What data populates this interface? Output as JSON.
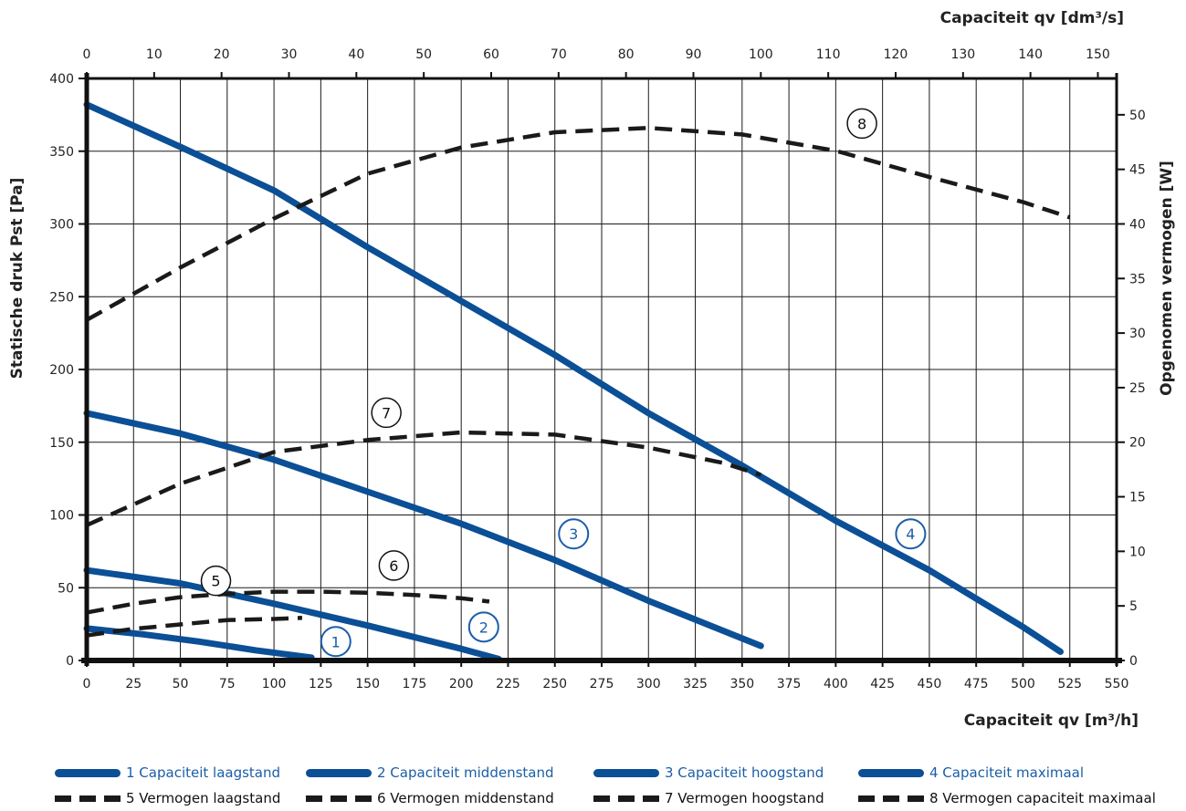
{
  "chart_data": {
    "type": "line",
    "axes": {
      "x_bottom": {
        "label": "Capaciteit qv [m³/h]",
        "range": [
          0,
          550
        ],
        "ticks": [
          0,
          25,
          50,
          75,
          100,
          125,
          150,
          175,
          200,
          225,
          250,
          275,
          300,
          325,
          350,
          375,
          400,
          425,
          450,
          475,
          500,
          525,
          550
        ]
      },
      "x_top": {
        "label": "Capaciteit qv [dm³/s]",
        "range": [
          0,
          152.78
        ],
        "ticks": [
          0,
          10,
          20,
          30,
          40,
          50,
          60,
          70,
          80,
          90,
          100,
          110,
          120,
          130,
          140,
          150
        ]
      },
      "y_left": {
        "label": "Statische druk Pst [Pa]",
        "range": [
          0,
          400
        ],
        "ticks": [
          0,
          50,
          100,
          150,
          200,
          250,
          300,
          350,
          400
        ]
      },
      "y_right": {
        "label": "Opgenomen vermogen [W]",
        "range": [
          0,
          53.33
        ],
        "ticks": [
          0,
          5,
          10,
          15,
          20,
          25,
          30,
          35,
          40,
          45,
          50
        ]
      }
    },
    "grid": true,
    "colors": {
      "capacity": "#0b4f96",
      "power": "#1a1a1a",
      "marker_blue": "#1b5ea8"
    },
    "series": [
      {
        "name": "1 Capaciteit laagstand",
        "num": "1",
        "kind": "capacity",
        "axis": "left",
        "x": [
          0,
          30,
          60,
          90,
          120
        ],
        "y": [
          22,
          18,
          13,
          7,
          2
        ],
        "marker": {
          "x": 133,
          "y": 13
        }
      },
      {
        "name": "2 Capaciteit middenstand",
        "num": "2",
        "kind": "capacity",
        "axis": "left",
        "x": [
          0,
          50,
          100,
          150,
          200,
          220
        ],
        "y": [
          62,
          53,
          39,
          24,
          8,
          1
        ],
        "marker": {
          "x": 212,
          "y": 23
        }
      },
      {
        "name": "3 Capaciteit hoogstand",
        "num": "3",
        "kind": "capacity",
        "axis": "left",
        "x": [
          0,
          50,
          100,
          150,
          200,
          250,
          300,
          360
        ],
        "y": [
          170,
          156,
          138,
          116,
          94,
          69,
          41,
          10
        ],
        "marker": {
          "x": 260,
          "y": 87
        }
      },
      {
        "name": "4 Capaciteit maximaal",
        "num": "4",
        "kind": "capacity",
        "axis": "left",
        "x": [
          0,
          50,
          100,
          150,
          200,
          250,
          300,
          350,
          400,
          450,
          500,
          520
        ],
        "y": [
          382,
          353,
          323,
          284,
          247,
          210,
          170,
          134,
          96,
          62,
          23,
          6
        ],
        "marker": {
          "x": 440,
          "y": 87
        }
      },
      {
        "name": "5 Vermogen laagstand",
        "num": "5",
        "kind": "power",
        "axis": "right",
        "x": [
          0,
          25,
          50,
          75,
          100,
          115
        ],
        "y": [
          2.3,
          2.9,
          3.3,
          3.7,
          3.8,
          3.9
        ],
        "marker": {
          "x": 69,
          "y": 7.3
        }
      },
      {
        "name": "6 Vermogen middenstand",
        "num": "6",
        "kind": "power",
        "axis": "right",
        "x": [
          0,
          25,
          50,
          75,
          100,
          125,
          150,
          175,
          200,
          215
        ],
        "y": [
          4.4,
          5.2,
          5.8,
          6.1,
          6.3,
          6.3,
          6.2,
          6.0,
          5.7,
          5.4
        ],
        "marker": {
          "x": 164,
          "y": 8.7
        }
      },
      {
        "name": "7 Vermogen hoogstand",
        "num": "7",
        "kind": "power",
        "axis": "right",
        "x": [
          0,
          50,
          100,
          150,
          200,
          250,
          300,
          340,
          360
        ],
        "y": [
          12.4,
          16.2,
          19.1,
          20.2,
          20.9,
          20.7,
          19.5,
          18.1,
          17.0
        ],
        "marker": {
          "x": 160,
          "y": 22.7
        }
      },
      {
        "name": "8 Vermogen capaciteit maximaal",
        "num": "8",
        "kind": "power",
        "axis": "right",
        "x": [
          0,
          50,
          100,
          150,
          200,
          250,
          300,
          350,
          400,
          450,
          500,
          525
        ],
        "y": [
          31.2,
          36.0,
          40.5,
          44.6,
          47.0,
          48.4,
          48.8,
          48.2,
          46.7,
          44.3,
          42.0,
          40.6
        ],
        "marker": {
          "x": 414,
          "y": 49.2
        }
      }
    ]
  },
  "legend": {
    "items": [
      {
        "label": "1 Capaciteit laagstand"
      },
      {
        "label": "2 Capaciteit middenstand"
      },
      {
        "label": "3 Capaciteit hoogstand"
      },
      {
        "label": "4 Capaciteit maximaal"
      },
      {
        "label": "5 Vermogen laagstand"
      },
      {
        "label": "6 Vermogen middenstand"
      },
      {
        "label": "7 Vermogen hoogstand"
      },
      {
        "label": "8 Vermogen capaciteit maximaal"
      }
    ]
  }
}
